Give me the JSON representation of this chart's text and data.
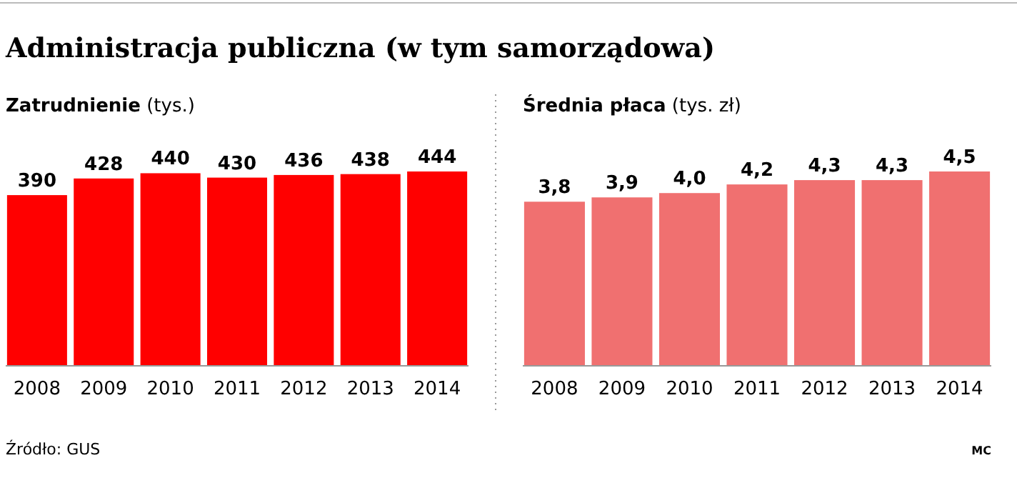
{
  "chart_data": [
    {
      "type": "bar",
      "title": "Administracja publiczna (w tym samorządowa)",
      "subtitle": "Zatrudnienie",
      "ylabel": "(tys.)",
      "categories": [
        "2008",
        "2009",
        "2010",
        "2011",
        "2012",
        "2013",
        "2014"
      ],
      "values": [
        390,
        428,
        440,
        430,
        436,
        438,
        444
      ],
      "color": "#ff0000",
      "data_labels": true,
      "annotations": [
        "Źródło: GUS"
      ]
    },
    {
      "type": "bar",
      "subtitle": "Średnia płaca",
      "ylabel": "(tys. zł)",
      "categories": [
        "2008",
        "2009",
        "2010",
        "2011",
        "2012",
        "2013",
        "2014"
      ],
      "values": [
        3.8,
        3.9,
        4.0,
        4.2,
        4.3,
        4.3,
        4.5
      ],
      "value_labels": [
        "3,8",
        "3,9",
        "4,0",
        "4,2",
        "4,3",
        "4,3",
        "4,5"
      ],
      "color": "#f07070",
      "annotations": [
        "MC"
      ]
    }
  ]
}
